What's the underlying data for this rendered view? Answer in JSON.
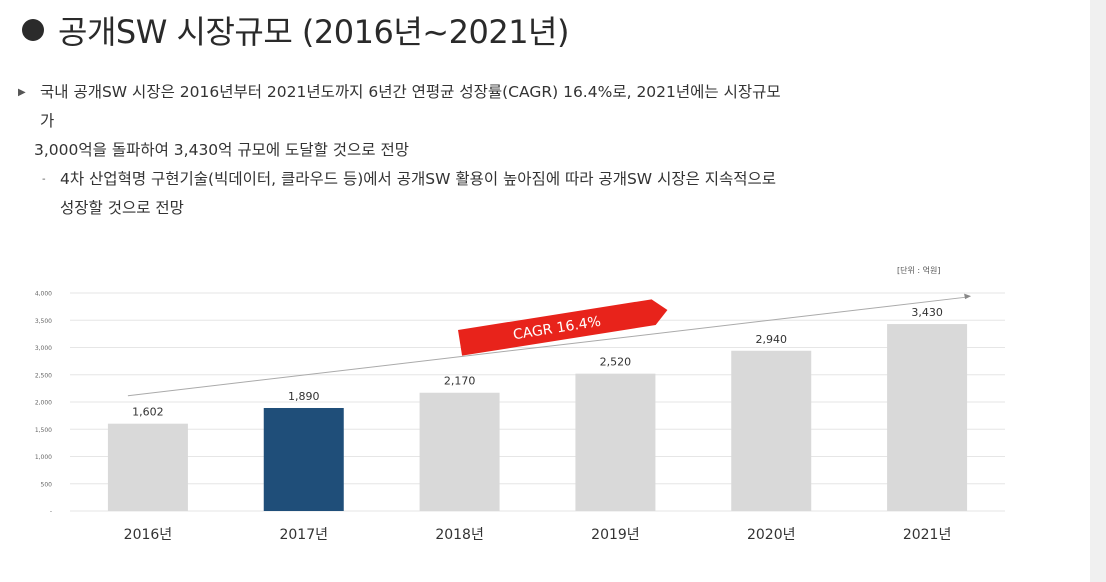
{
  "heading": {
    "title": "공개SW 시장규모 (2016년~2021년)"
  },
  "body": {
    "line1": "국내 공개SW 시장은 2016년부터 2021년도까지 6년간 연평균 성장률(CAGR) 16.4%로, 2021년에는 시장규모",
    "line2": "가",
    "line3": "3,000억을 돌파하여 3,430억 규모에 도달할 것으로 전망",
    "line4": "4차 산업혁명 구현기술(빅데이터, 클라우드 등)에서 공개SW 활용이 높아짐에 따라 공개SW 시장은 지속적으로",
    "line5": "성장할 것으로 전망"
  },
  "chart_data": {
    "type": "bar",
    "unit_label": "[단위 : 억원]",
    "categories": [
      "2016년",
      "2017년",
      "2018년",
      "2019년",
      "2020년",
      "2021년"
    ],
    "values": [
      1602,
      1890,
      2170,
      2520,
      2940,
      3430
    ],
    "value_labels": [
      "1,602",
      "1,890",
      "2,170",
      "2,520",
      "2,940",
      "3,430"
    ],
    "highlight_index": 1,
    "ylim": [
      0,
      4000
    ],
    "yticks": [
      0,
      500,
      1000,
      1500,
      2000,
      2500,
      3000,
      3500,
      4000
    ],
    "ytick_labels": [
      "-",
      "500",
      "1,000",
      "1,500",
      "2,000",
      "2,500",
      "3,000",
      "3,500",
      "4,000"
    ],
    "annotation": "CAGR 16.4%",
    "grid": true,
    "colors": {
      "bar": "#d9d9d9",
      "highlight": "#1f4e79",
      "annotation": "#e8231b",
      "grid": "#e6e6e6"
    }
  }
}
